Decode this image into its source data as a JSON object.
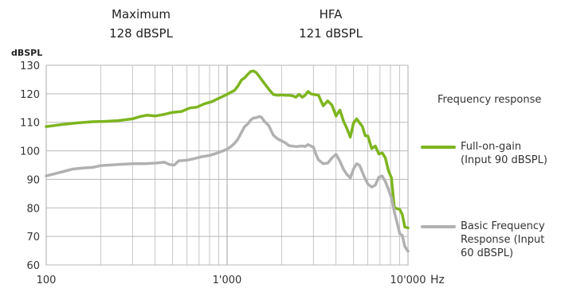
{
  "header": {
    "maximum": {
      "label": "Maximum",
      "value": "128 dBSPL"
    },
    "hfa": {
      "label": "HFA",
      "value": "121 dBSPL"
    }
  },
  "colors": {
    "full_on_gain": "#7db51f",
    "basic": "#b1b1b1",
    "grid": "#b9b9b9"
  },
  "legend": {
    "title": "Frequency response",
    "items": [
      {
        "label": "Full-on-gain (Input 90 dBSPL)",
        "series": 0
      },
      {
        "label": "Basic Frequency Response (Input 60 dBSPL)",
        "series": 1
      }
    ]
  },
  "chart_data": {
    "type": "line",
    "ylabel": "dBSPL",
    "xlabel": "Hz",
    "x_scale": "log",
    "xlim": [
      100,
      10000
    ],
    "ylim": [
      60,
      130
    ],
    "y_ticks": [
      "60",
      "70",
      "80",
      "90",
      "100",
      "110",
      "120",
      "130"
    ],
    "x_ticks": [
      {
        "value": 100,
        "label": "100"
      },
      {
        "value": 1000,
        "label": "1'000"
      },
      {
        "value": 10000,
        "label": "10'000"
      }
    ],
    "grid": true,
    "series": [
      {
        "name": "Full-on-gain (Input 90 dBSPL)",
        "color": "#7db51f",
        "x": [
          100,
          125,
          150,
          180,
          210,
          250,
          300,
          330,
          360,
          400,
          450,
          500,
          560,
          620,
          680,
          750,
          820,
          900,
          1000,
          1100,
          1150,
          1200,
          1250,
          1300,
          1350,
          1400,
          1450,
          1500,
          1600,
          1700,
          1800,
          1900,
          2000,
          2100,
          2200,
          2300,
          2400,
          2500,
          2600,
          2700,
          2800,
          2900,
          3000,
          3200,
          3400,
          3600,
          3800,
          4000,
          4200,
          4400,
          4600,
          4800,
          5000,
          5200,
          5400,
          5600,
          5800,
          6000,
          6300,
          6600,
          6900,
          7200,
          7500,
          7800,
          8100,
          8400,
          8700,
          9000,
          9300,
          9600,
          10000
        ],
        "y": [
          108.5,
          109.3,
          109.8,
          110.2,
          110.3,
          110.6,
          111.2,
          112,
          112.5,
          112.2,
          112.8,
          113.5,
          113.8,
          115,
          115.3,
          116.5,
          117.2,
          118.4,
          119.8,
          121.2,
          122.8,
          124.8,
          125.6,
          126.8,
          127.8,
          128,
          127.4,
          126.2,
          123.8,
          121.6,
          119.8,
          119.5,
          119.6,
          119.5,
          119.5,
          119.3,
          118.8,
          119.8,
          118.8,
          119.5,
          120.8,
          120,
          119.8,
          119.5,
          115.8,
          117.5,
          116,
          112.2,
          114.3,
          110.4,
          107.8,
          104.8,
          109.8,
          111.2,
          109.8,
          108.5,
          105.3,
          105.2,
          100.8,
          101.7,
          98.9,
          99.3,
          97.5,
          93,
          90.5,
          80.2,
          79.7,
          79.5,
          77.7,
          73.3,
          73
        ]
      },
      {
        "name": "Basic Frequency Response (Input 60 dBSPL)",
        "color": "#b1b1b1",
        "x": [
          100,
          120,
          140,
          160,
          180,
          200,
          250,
          300,
          350,
          400,
          450,
          480,
          510,
          540,
          600,
          660,
          720,
          800,
          880,
          950,
          1000,
          1050,
          1100,
          1150,
          1200,
          1250,
          1300,
          1350,
          1400,
          1450,
          1500,
          1550,
          1600,
          1700,
          1800,
          1900,
          2000,
          2100,
          2200,
          2400,
          2600,
          2700,
          2800,
          2900,
          3000,
          3100,
          3200,
          3400,
          3600,
          3800,
          4000,
          4200,
          4400,
          4600,
          4800,
          5000,
          5200,
          5400,
          5600,
          5800,
          6000,
          6300,
          6600,
          6900,
          7200,
          7500,
          7800,
          8100,
          8400,
          8700,
          9000,
          9300,
          9600,
          10000
        ],
        "y": [
          91.2,
          92.5,
          93.6,
          94,
          94.2,
          94.8,
          95.2,
          95.5,
          95.5,
          95.7,
          96,
          95.2,
          95,
          96.5,
          96.7,
          97.3,
          97.9,
          98.4,
          99.2,
          100,
          100.6,
          101.5,
          102.6,
          104.2,
          106.5,
          108.5,
          109.4,
          110.8,
          111.5,
          111.6,
          112,
          111.8,
          110.5,
          108.8,
          105.5,
          104.2,
          103.5,
          102.8,
          101.8,
          101.5,
          101.7,
          101.5,
          102.2,
          101.7,
          101.3,
          98.8,
          96.8,
          95.5,
          95.7,
          97.5,
          98.8,
          96.4,
          93.5,
          91.7,
          90.5,
          93.7,
          95.5,
          94.9,
          92.5,
          90.2,
          88.4,
          87.3,
          88,
          90.8,
          91.2,
          89.2,
          86.5,
          83.5,
          78.7,
          74.8,
          71,
          70.4,
          66.5,
          64.8
        ]
      }
    ]
  }
}
